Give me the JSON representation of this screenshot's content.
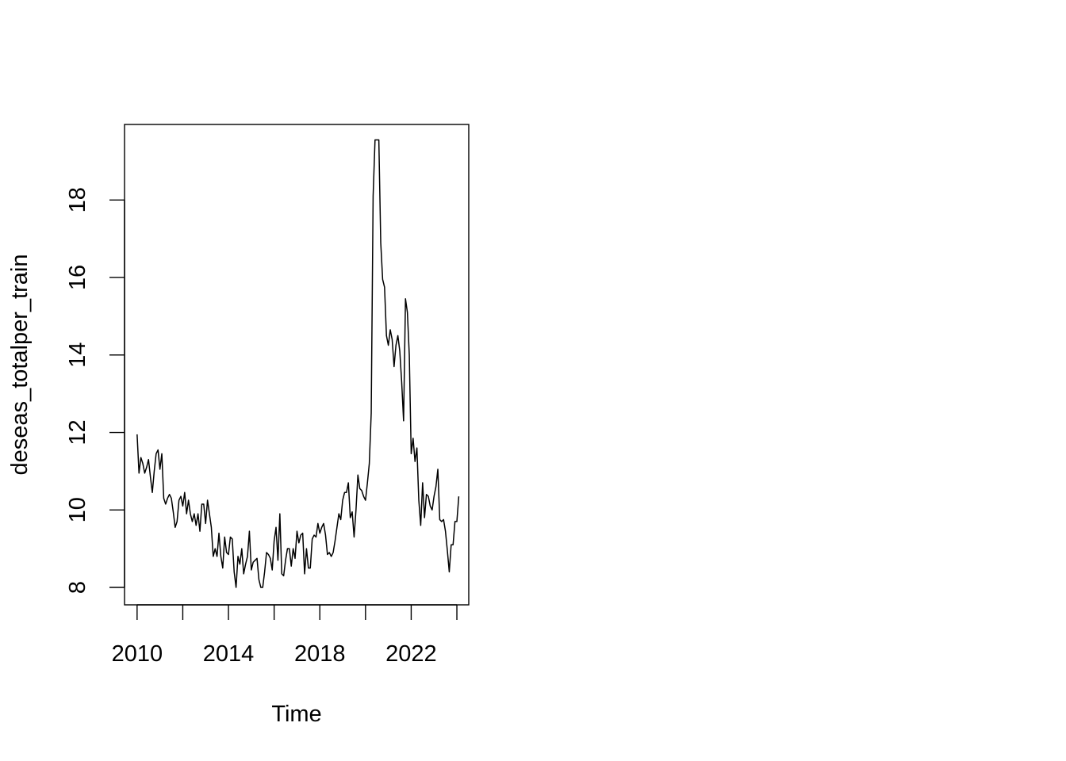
{
  "chart_data": {
    "type": "line",
    "title": "",
    "xlabel": "Time",
    "ylabel": "deseas_totalper_train",
    "xlim": [
      2009.45,
      2024.52
    ],
    "ylim": [
      7.55,
      19.95
    ],
    "x_ticks": [
      2010,
      2012,
      2014,
      2016,
      2018,
      2020,
      2022,
      2024
    ],
    "x_tick_labels": [
      {
        "value": 2010,
        "label": "2010"
      },
      {
        "value": 2014,
        "label": "2014"
      },
      {
        "value": 2018,
        "label": "2018"
      },
      {
        "value": 2022,
        "label": "2022"
      }
    ],
    "y_ticks": [
      8,
      10,
      12,
      14,
      16,
      18
    ],
    "y_tick_labels": [
      "8",
      "10",
      "12",
      "14",
      "16",
      "18"
    ],
    "grid": false,
    "line_color": "#000000",
    "series": [
      {
        "x_start": 2010.0,
        "frequency": 12,
        "values": [
          11.95,
          10.95,
          11.35,
          11.2,
          10.95,
          11.1,
          11.3,
          10.85,
          10.45,
          11.0,
          11.45,
          11.55,
          11.05,
          11.45,
          10.3,
          10.15,
          10.3,
          10.4,
          10.3,
          9.95,
          9.55,
          9.7,
          10.25,
          10.35,
          10.1,
          10.45,
          9.9,
          10.25,
          9.9,
          9.7,
          9.9,
          9.6,
          9.9,
          9.45,
          10.15,
          10.15,
          9.65,
          10.25,
          9.9,
          9.55,
          8.8,
          9.0,
          8.8,
          9.4,
          8.8,
          8.5,
          9.3,
          8.9,
          8.85,
          9.3,
          9.25,
          8.4,
          8.0,
          8.8,
          8.6,
          9.0,
          8.35,
          8.6,
          8.8,
          9.45,
          8.45,
          8.65,
          8.7,
          8.75,
          8.2,
          8.0,
          8.0,
          8.4,
          8.9,
          8.85,
          8.75,
          8.45,
          9.2,
          9.55,
          8.7,
          9.9,
          8.35,
          8.3,
          8.7,
          9.0,
          9.0,
          8.55,
          9.0,
          8.75,
          9.45,
          9.15,
          9.35,
          9.4,
          8.35,
          9.0,
          8.5,
          8.5,
          9.25,
          9.35,
          9.3,
          9.65,
          9.4,
          9.55,
          9.65,
          9.35,
          8.85,
          8.9,
          8.8,
          8.9,
          9.2,
          9.55,
          9.9,
          9.75,
          10.25,
          10.45,
          10.45,
          10.7,
          9.8,
          9.95,
          9.3,
          10.0,
          10.9,
          10.55,
          10.5,
          10.35,
          10.25,
          10.7,
          11.2,
          12.5,
          18.1,
          19.55,
          19.55,
          19.55,
          16.9,
          15.95,
          15.75,
          14.5,
          14.25,
          14.65,
          14.4,
          13.7,
          14.25,
          14.5,
          14.1,
          13.3,
          12.3,
          15.45,
          15.1,
          14.0,
          11.45,
          11.85,
          11.25,
          11.6,
          10.25,
          9.6,
          10.7,
          9.8,
          10.4,
          10.35,
          10.1,
          10.0,
          10.35,
          10.6,
          11.05,
          9.75,
          9.7,
          9.75,
          9.45,
          8.95,
          8.4,
          9.1,
          9.1,
          9.7,
          9.7,
          10.35
        ]
      }
    ]
  }
}
